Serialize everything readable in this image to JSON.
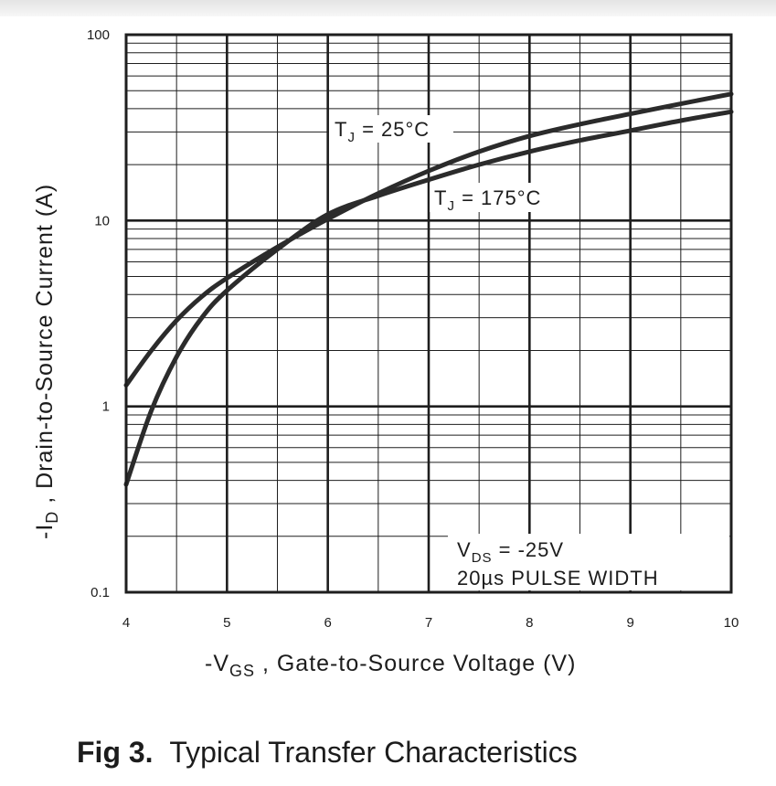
{
  "chart_data": {
    "type": "line",
    "title": "",
    "xlabel": {
      "prefix": "-V",
      "sub": "GS",
      "text": " , Gate-to-Source Voltage (V)"
    },
    "ylabel": {
      "prefix": "-I",
      "sub": "D",
      "text": " , Drain-to-Source Current (A)"
    },
    "xlim": [
      4,
      10
    ],
    "ylim": [
      0.1,
      100
    ],
    "yscale": "log",
    "grid": true,
    "x_ticks": [
      "4",
      "5",
      "6",
      "7",
      "8",
      "9",
      "10"
    ],
    "y_ticks": [
      "0.1",
      "1",
      "10",
      "100"
    ],
    "series": [
      {
        "name": "T_J = 25°C",
        "x": [
          4.0,
          4.25,
          4.5,
          4.75,
          5.0,
          5.5,
          6.0,
          6.5,
          7.0,
          7.5,
          8.0,
          8.5,
          9.0,
          9.5,
          10.0
        ],
        "y": [
          1.3,
          2.0,
          2.9,
          3.9,
          4.9,
          7.2,
          10.2,
          14.0,
          18.5,
          23.5,
          28.5,
          33.0,
          37.5,
          42.5,
          48.0
        ]
      },
      {
        "name": "T_J = 175°C",
        "x": [
          4.0,
          4.25,
          4.5,
          4.75,
          5.0,
          5.5,
          6.0,
          6.5,
          7.0,
          7.5,
          8.0,
          8.5,
          9.0,
          9.5,
          10.0
        ],
        "y": [
          0.38,
          0.95,
          1.85,
          3.0,
          4.2,
          7.0,
          10.8,
          13.6,
          16.6,
          20.0,
          23.5,
          27.0,
          30.5,
          34.5,
          38.5
        ]
      }
    ],
    "annotations": [
      {
        "main": "T",
        "sub": "J",
        "text": " = 25°C"
      },
      {
        "main": "T",
        "sub": "J",
        "text": " = 175°C"
      },
      {
        "main": "V",
        "sub": "DS",
        "text": " = -25V"
      },
      {
        "text": "20µs PULSE WIDTH"
      }
    ]
  },
  "caption": {
    "fig_label": "Fig 3.",
    "text": "Typical Transfer Characteristics"
  },
  "colors": {
    "ink": "#1c1c1c",
    "curve": "#2b2b2b",
    "grid": "#1e1e1e"
  }
}
